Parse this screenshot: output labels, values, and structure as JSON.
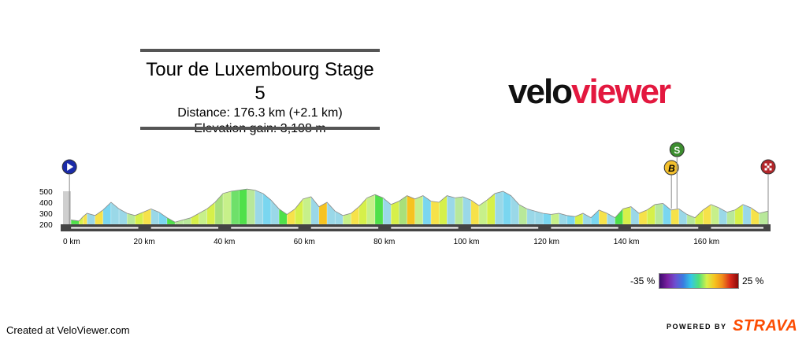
{
  "header": {
    "title": "Tour de Luxembourg Stage 5",
    "distance": "Distance: 176.3 km (+2.1 km)",
    "elevation": "Elevation gain: 3,108 m"
  },
  "logo": {
    "part1": "velo",
    "part2": "viewer"
  },
  "footer": {
    "credit": "Created at VeloViewer.com",
    "powered_by": "POWERED BY",
    "strava": "STRAVA"
  },
  "gradient_legend": {
    "min_label": "-35 %",
    "max_label": "25 %"
  },
  "markers": {
    "start": {
      "km": 2,
      "label": "▶"
    },
    "sprint": {
      "km": 153.5,
      "label": "S",
      "color": "#3c8d2f"
    },
    "bonus": {
      "km": 152.5,
      "label": "B",
      "color": "#f3c02d"
    },
    "finish": {
      "km": 176.3,
      "label": "▦"
    }
  },
  "chart_data": {
    "type": "area",
    "title": "Tour de Luxembourg Stage 5",
    "xlabel": "",
    "ylabel": "",
    "x_unit": "km",
    "xlim": [
      0,
      176.3
    ],
    "ylim": [
      150,
      550
    ],
    "yticks": [
      200,
      300,
      400,
      500
    ],
    "xticks": [
      0,
      20,
      40,
      60,
      80,
      100,
      120,
      140,
      160
    ],
    "xtick_labels": [
      "0 km",
      "20 km",
      "40 km",
      "60 km",
      "80 km",
      "100 km",
      "120 km",
      "140 km",
      "160 km"
    ],
    "profile_km": [
      0,
      2,
      4,
      5,
      6,
      8,
      10,
      12,
      14,
      16,
      18,
      20,
      22,
      24,
      26,
      28,
      30,
      32,
      34,
      36,
      38,
      40,
      42,
      44,
      46,
      48,
      50,
      52,
      54,
      56,
      58,
      60,
      62,
      64,
      66,
      68,
      70,
      72,
      74,
      76,
      78,
      80,
      82,
      84,
      86,
      88,
      90,
      92,
      94,
      96,
      98,
      100,
      102,
      104,
      106,
      108,
      110,
      112,
      114,
      116,
      118,
      120,
      122,
      124,
      126,
      128,
      130,
      132,
      134,
      136,
      138,
      140,
      142,
      144,
      146,
      148,
      150,
      152,
      154,
      156,
      158,
      160,
      162,
      164,
      166,
      168,
      170,
      172,
      174,
      176.3
    ],
    "profile_elev": [
      240,
      240,
      230,
      270,
      300,
      280,
      330,
      400,
      340,
      300,
      280,
      310,
      340,
      310,
      260,
      220,
      240,
      260,
      300,
      340,
      400,
      480,
      500,
      510,
      520,
      510,
      480,
      420,
      340,
      290,
      340,
      430,
      450,
      360,
      400,
      320,
      280,
      300,
      360,
      440,
      470,
      440,
      380,
      410,
      460,
      430,
      460,
      410,
      400,
      460,
      440,
      450,
      420,
      370,
      420,
      480,
      500,
      460,
      380,
      340,
      320,
      300,
      290,
      300,
      280,
      270,
      300,
      260,
      330,
      300,
      260,
      340,
      360,
      300,
      330,
      380,
      390,
      330,
      340,
      290,
      260,
      330,
      380,
      350,
      310,
      330,
      380,
      350,
      300,
      320
    ],
    "profile_gradient_color": [
      "#4fe04a",
      "#4fe04a",
      "#d6f04a",
      "#f6e24a",
      "#9ad8e8",
      "#f6e24a",
      "#7ad6f0",
      "#9ad8e8",
      "#9ad8e8",
      "#b8e89a",
      "#d6f04a",
      "#f6e24a",
      "#9ad8e8",
      "#7ad6f0",
      "#4fe04a",
      "#b8e89a",
      "#b8e89a",
      "#d6f04a",
      "#c7f08a",
      "#d6f04a",
      "#a8e07a",
      "#c7f08a",
      "#6fe06a",
      "#4fe04a",
      "#b8e89a",
      "#9ad8e8",
      "#7ad6f0",
      "#9ad8e8",
      "#4fe04a",
      "#f6e24a",
      "#d6f04a",
      "#c7f08a",
      "#9ad8e8",
      "#f6c320",
      "#9ad8e8",
      "#9ad8e8",
      "#c7f08a",
      "#f6e24a",
      "#d6f04a",
      "#c7f08a",
      "#4fe04a",
      "#9ad8e8",
      "#d6f04a",
      "#a8e07a",
      "#f6c320",
      "#c7f08a",
      "#7ad6f0",
      "#f6e24a",
      "#d6f04a",
      "#9ad8e8",
      "#b8e89a",
      "#9ad8e8",
      "#f6e24a",
      "#c7f08a",
      "#d6f04a",
      "#9ad8e8",
      "#7ad6f0",
      "#9ad8e8",
      "#b8e89a",
      "#9ad8e8",
      "#9ad8e8",
      "#7ad6f0",
      "#c7f08a",
      "#9ad8e8",
      "#7ad6f0",
      "#d6f04a",
      "#9ad8e8",
      "#7ad6f0",
      "#f6e24a",
      "#9ad8e8",
      "#4fe04a",
      "#d6f04a",
      "#9ad8e8",
      "#f6e24a",
      "#d6f04a",
      "#b8e89a",
      "#7ad6f0",
      "#f6e24a",
      "#9ad8e8",
      "#b8e89a",
      "#d6f04a",
      "#f6e24a",
      "#c7f08a",
      "#9ad8e8",
      "#b8e89a",
      "#d6f04a",
      "#9ad8e8",
      "#f6e24a",
      "#b8e89a"
    ]
  }
}
